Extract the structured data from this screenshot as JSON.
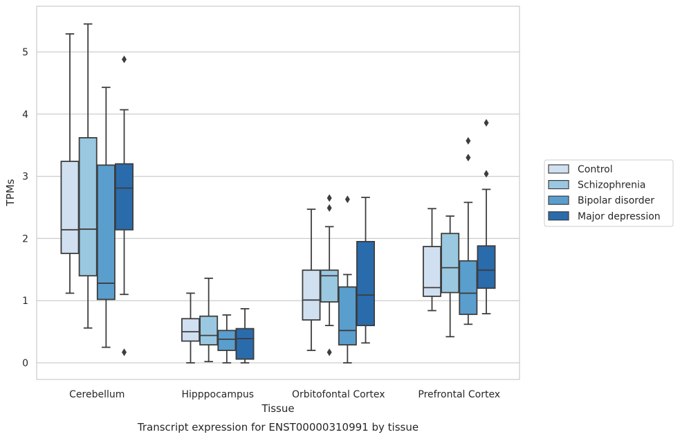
{
  "chart_data": {
    "type": "boxplot",
    "title": "",
    "caption": "Transcript expression for ENST00000310991 by tissue",
    "xlabel": "Tissue",
    "ylabel": "TPMs",
    "ylim": [
      -0.27,
      5.73
    ],
    "yticks": [
      0,
      1,
      2,
      3,
      4,
      5
    ],
    "grid": "horizontal",
    "legend_position": "right",
    "categories": [
      "Cerebellum",
      "Hipppocampus",
      "Orbitofontal Cortex",
      "Prefrontal Cortex"
    ],
    "series": [
      {
        "name": "Control",
        "color": "#d0e0f1",
        "boxes": [
          {
            "whisker_low": 1.12,
            "q1": 1.76,
            "median": 2.14,
            "q3": 3.24,
            "whisker_high": 5.29,
            "outliers": []
          },
          {
            "whisker_low": 0.0,
            "q1": 0.35,
            "median": 0.5,
            "q3": 0.71,
            "whisker_high": 1.12,
            "outliers": []
          },
          {
            "whisker_low": 0.2,
            "q1": 0.69,
            "median": 1.01,
            "q3": 1.49,
            "whisker_high": 2.47,
            "outliers": []
          },
          {
            "whisker_low": 0.84,
            "q1": 1.07,
            "median": 1.21,
            "q3": 1.87,
            "whisker_high": 2.48,
            "outliers": []
          }
        ]
      },
      {
        "name": "Schizophrenia",
        "color": "#9ac8e0",
        "boxes": [
          {
            "whisker_low": 0.56,
            "q1": 1.4,
            "median": 2.15,
            "q3": 3.62,
            "whisker_high": 5.45,
            "outliers": []
          },
          {
            "whisker_low": 0.02,
            "q1": 0.29,
            "median": 0.44,
            "q3": 0.75,
            "whisker_high": 1.36,
            "outliers": []
          },
          {
            "whisker_low": 0.6,
            "q1": 0.98,
            "median": 1.4,
            "q3": 1.49,
            "whisker_high": 2.19,
            "outliers": [
              0.17,
              2.49,
              2.65
            ]
          },
          {
            "whisker_low": 0.42,
            "q1": 1.13,
            "median": 1.53,
            "q3": 2.08,
            "whisker_high": 2.36,
            "outliers": []
          }
        ]
      },
      {
        "name": "Bipolar disorder",
        "color": "#5a9ecd",
        "boxes": [
          {
            "whisker_low": 0.25,
            "q1": 1.02,
            "median": 1.28,
            "q3": 3.18,
            "whisker_high": 4.43,
            "outliers": []
          },
          {
            "whisker_low": 0.0,
            "q1": 0.2,
            "median": 0.38,
            "q3": 0.52,
            "whisker_high": 0.77,
            "outliers": []
          },
          {
            "whisker_low": 0.0,
            "q1": 0.29,
            "median": 0.52,
            "q3": 1.22,
            "whisker_high": 1.42,
            "outliers": [
              2.63
            ]
          },
          {
            "whisker_low": 0.62,
            "q1": 0.78,
            "median": 1.12,
            "q3": 1.64,
            "whisker_high": 2.58,
            "outliers": [
              3.3,
              3.57
            ]
          }
        ]
      },
      {
        "name": "Major depression",
        "color": "#2a6bac",
        "boxes": [
          {
            "whisker_low": 1.1,
            "q1": 2.14,
            "median": 2.81,
            "q3": 3.2,
            "whisker_high": 4.07,
            "outliers": [
              0.17,
              4.88
            ]
          },
          {
            "whisker_low": 0.0,
            "q1": 0.06,
            "median": 0.39,
            "q3": 0.55,
            "whisker_high": 0.87,
            "outliers": []
          },
          {
            "whisker_low": 0.32,
            "q1": 0.6,
            "median": 1.09,
            "q3": 1.95,
            "whisker_high": 2.66,
            "outliers": []
          },
          {
            "whisker_low": 0.79,
            "q1": 1.2,
            "median": 1.49,
            "q3": 1.88,
            "whisker_high": 2.79,
            "outliers": [
              3.04,
              3.86
            ]
          }
        ]
      }
    ]
  }
}
